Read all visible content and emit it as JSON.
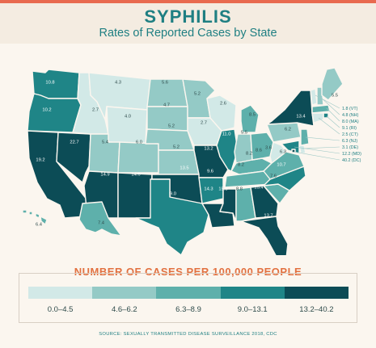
{
  "title": "SYPHILIS",
  "subtitle": "Rates of Reported Cases by State",
  "colors": {
    "c1": "#d2e9e7",
    "c2": "#94cac6",
    "c3": "#5eb0ab",
    "c4": "#1f8587",
    "c5": "#0c4c56",
    "accent": "#e86a4f",
    "title": "#1f7f82"
  },
  "legend": {
    "title": "NUMBER OF CASES PER 100,000 PEOPLE",
    "ranges": [
      "0.0–4.5",
      "4.6–6.2",
      "6.3–8.9",
      "9.0–13.1",
      "13.2–40.2"
    ]
  },
  "source": "SOURCE: SEXUALLY TRANSMITTED DISEASE SURVEILLANCE 2018, CDC",
  "states": {
    "WA": "10.8",
    "OR": "10.2",
    "CA": "19.2",
    "NV": "22.7",
    "ID": "2.7",
    "MT": "4.3",
    "WY": "4.0",
    "UT": "5.4",
    "AZ": "14.9",
    "CO": "6.0",
    "NM": "14.6",
    "ND": "5.6",
    "SD": "4.7",
    "NE": "5.2",
    "KS": "5.2",
    "OK": "13.5",
    "TX": "9.0",
    "MN": "5.2",
    "IA": "2.7",
    "MO": "13.2",
    "AR": "9.6",
    "LA": "14.3",
    "WI": "2.6",
    "IL": "11.0",
    "MS": "15.5",
    "MI": "8.5",
    "IN": "5.5",
    "KY": "8.2",
    "TN": "8.2",
    "AL": "8.8",
    "OH": "8.6",
    "GA": "15.4",
    "FL": "13.7",
    "SC": "7.6",
    "NC": "10.7",
    "VA": "6.3",
    "WV": "3.6",
    "PA": "6.2",
    "NY": "13.4",
    "ME": "5.5",
    "AK": "7.4",
    "HI": "6.4"
  },
  "northeast": [
    "1.8 (VT)",
    "4.8 (NH)",
    "8.0 (MA)",
    "9.1 (RI)",
    "2.5 (CT)",
    "6.3 (NJ)",
    "3.1 (DE)",
    "12.2 (MD)",
    "40.2 (DC)"
  ]
}
